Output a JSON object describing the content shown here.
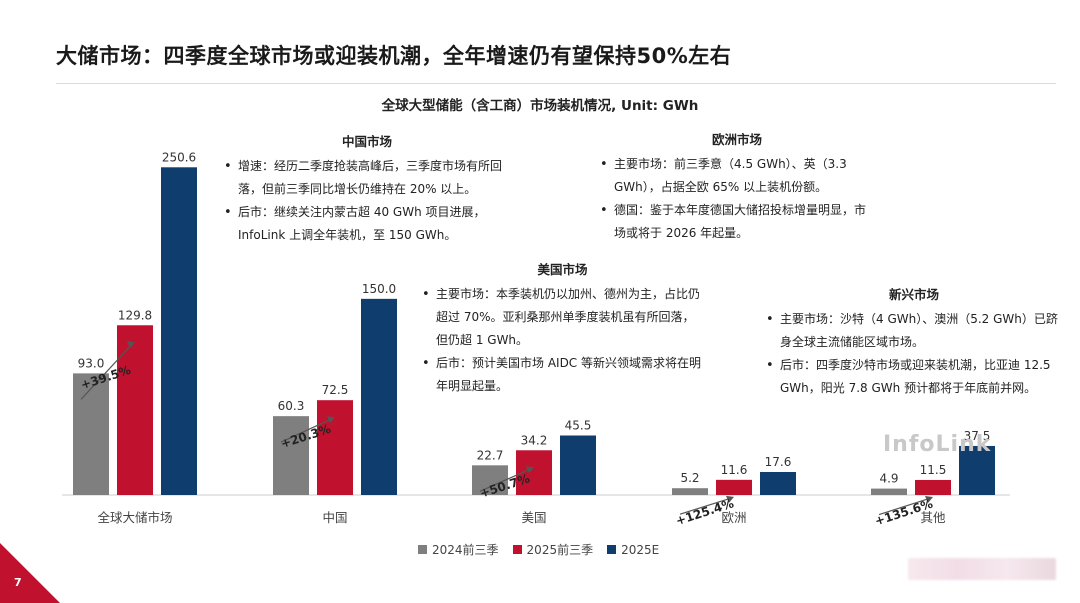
{
  "slide": {
    "title": "大储市场：四季度全球市场或迎装机潮，全年增速仍有望保持50%左右",
    "page_number": "7",
    "watermark": "InfoLink",
    "accent_color": "#c0112f"
  },
  "notes": {
    "china": {
      "heading": "中国市场",
      "items": [
        "增速：经历二季度抢装高峰后，三季度市场有所回落，但前三季同比增长仍维持在 20% 以上。",
        "后市：继续关注内蒙古超 40 GWh 项目进展，InfoLink 上调全年装机，至 150 GWh。"
      ]
    },
    "europe": {
      "heading": "欧洲市场",
      "items": [
        "主要市场：前三季意（4.5 GWh）、英（3.3 GWh），占据全欧 65% 以上装机份额。",
        "德国：鉴于本年度德国大储招投标增量明显，市场或将于 2026 年起量。"
      ]
    },
    "us": {
      "heading": "美国市场",
      "items": [
        "主要市场：本季装机仍以加州、德州为主，占比仍超过 70%。亚利桑那州单季度装机虽有所回落，但仍超 1 GWh。",
        "后市：预计美国市场 AIDC 等新兴领域需求将在明年明显起量。"
      ]
    },
    "emerging": {
      "heading": "新兴市场",
      "items": [
        "主要市场：沙特（4 GWh）、澳洲（5.2 GWh）已跻身全球主流储能区域市场。",
        "后市：四季度沙特市场或迎来装机潮，比亚迪 12.5 GWh，阳光 7.8 GWh 预计都将于年底前并网。"
      ]
    }
  },
  "chart_data": {
    "type": "bar",
    "title": "全球大型储能（含工商）市场装机情况, Unit: GWh",
    "categories": [
      "全球大储市场",
      "中国",
      "美国",
      "欧洲",
      "其他"
    ],
    "series": [
      {
        "name": "2024前三季",
        "values": [
          93.0,
          60.3,
          22.7,
          5.2,
          4.9
        ],
        "labels": [
          "93.0",
          "60.3",
          "22.7",
          "5.2",
          "4.9"
        ],
        "color": "#7f7f7f"
      },
      {
        "name": "2025前三季",
        "values": [
          129.8,
          72.5,
          34.2,
          11.6,
          11.5
        ],
        "labels": [
          "129.8",
          "72.5",
          "34.2",
          "11.6",
          "11.5"
        ],
        "color": "#c0112f"
      },
      {
        "name": "2025E",
        "values": [
          250.6,
          150.0,
          45.5,
          17.6,
          37.5
        ],
        "labels": [
          "250.6",
          "150.0",
          "45.5",
          "17.6",
          "37.5"
        ],
        "color": "#0f3d6e"
      }
    ],
    "growth_labels": [
      "+39.5%",
      "+20.3%",
      "+50.7%",
      "+125.4%",
      "+135.6%"
    ],
    "ylim": [
      0,
      260
    ],
    "legend": "bottom",
    "grid": false
  }
}
